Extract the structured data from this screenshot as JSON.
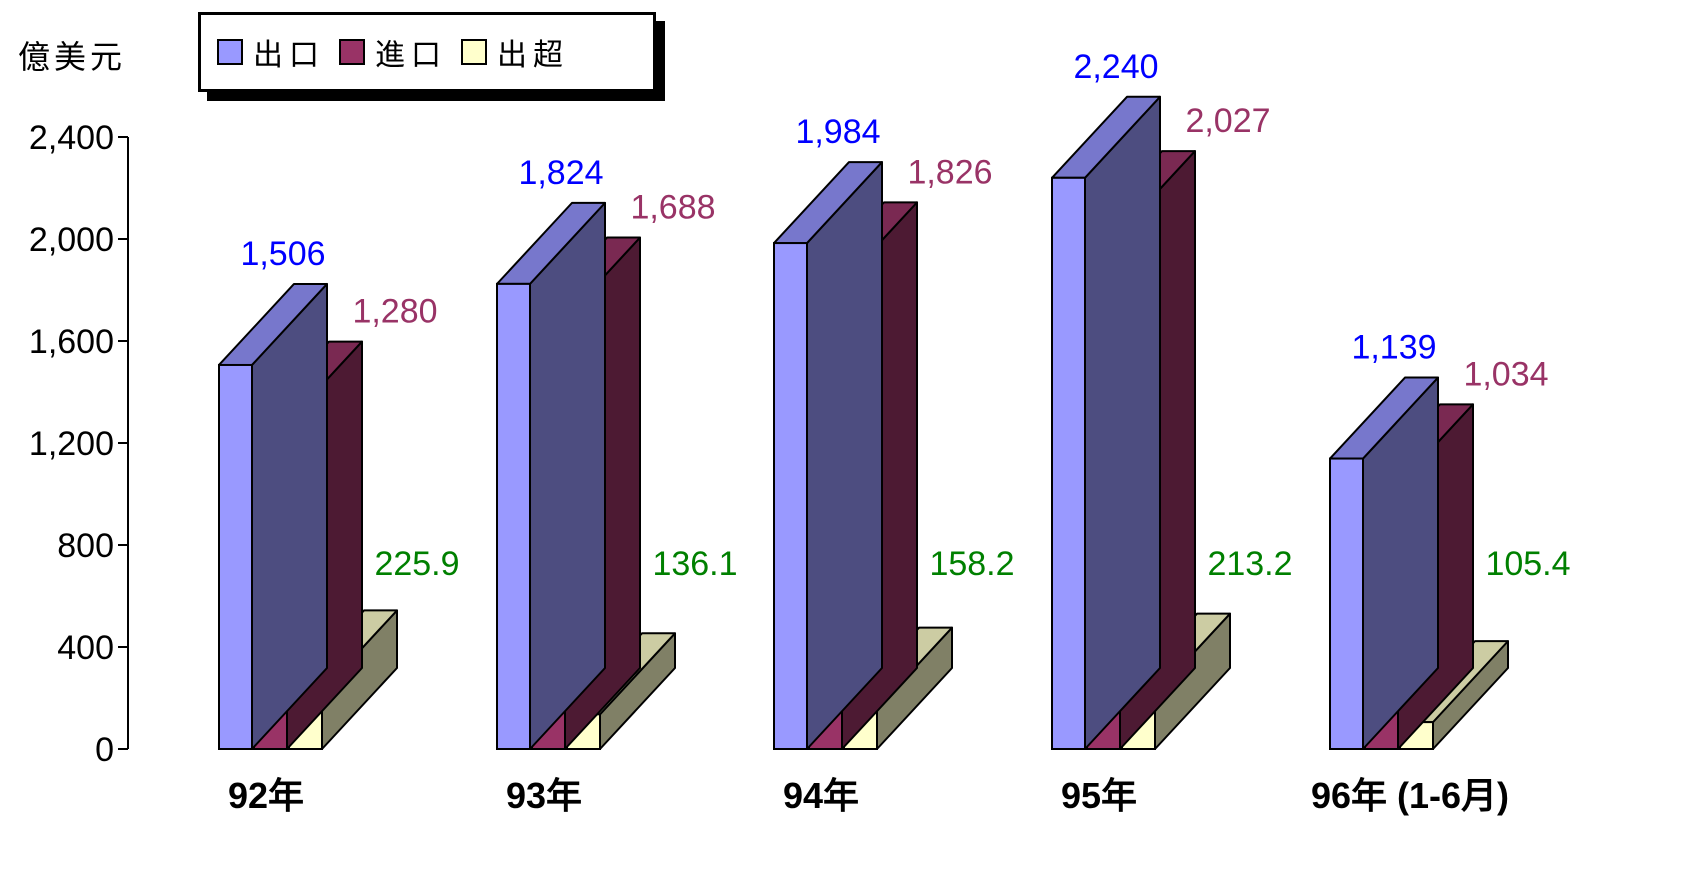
{
  "unit_label": "億美元",
  "legend": [
    {
      "label": "出口",
      "color": "#9999ff"
    },
    {
      "label": "進口",
      "color": "#993366"
    },
    {
      "label": "出超",
      "color": "#ffffcc"
    }
  ],
  "colors": {
    "export_label": "#0000ff",
    "import_label": "#993366",
    "surplus_label": "#008000",
    "export_side": "#4d4d80",
    "export_top": "#7777cc",
    "import_side": "#4d1a33",
    "import_top": "#7a2952",
    "surplus_side": "#808066",
    "surplus_top": "#cccca3"
  },
  "chart_data": {
    "type": "bar",
    "categories": [
      "92年",
      "93年",
      "94年",
      "95年",
      "96年 (1-6月)"
    ],
    "series": [
      {
        "name": "出口",
        "values": [
          1506,
          1824,
          1984,
          2240,
          1139
        ],
        "labels": [
          "1,506",
          "1,824",
          "1,984",
          "2,240",
          "1,139"
        ]
      },
      {
        "name": "進口",
        "values": [
          1280,
          1688,
          1826,
          2027,
          1034
        ],
        "labels": [
          "1,280",
          "1,688",
          "1,826",
          "2,027",
          "1,034"
        ]
      },
      {
        "name": "出超",
        "values": [
          225.9,
          136.1,
          158.2,
          213.2,
          105.4
        ],
        "labels": [
          "225.9",
          "136.1",
          "158.2",
          "213.2",
          "105.4"
        ]
      }
    ],
    "yticks": [
      "0",
      "400",
      "800",
      "1,200",
      "1,600",
      "2,000",
      "2,400"
    ],
    "ylim": [
      0,
      2400
    ],
    "grid": false,
    "legend_position": "top-left"
  }
}
